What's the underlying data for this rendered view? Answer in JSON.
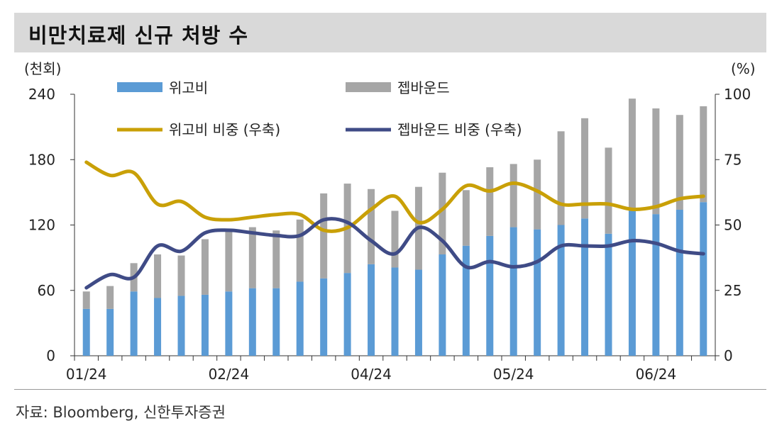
{
  "title": "비만치료제 신규 처방 수",
  "source": "자료: Bloomberg, 신한투자증권",
  "chart_data": {
    "type": "bar+line",
    "left_axis_unit": "(천회)",
    "right_axis_unit": "(%)",
    "left_ticks": [
      "0",
      "60",
      "120",
      "180",
      "240"
    ],
    "right_ticks": [
      "0",
      "25",
      "50",
      "75",
      "100"
    ],
    "ylim_left": [
      0,
      240
    ],
    "ylim_right": [
      0,
      100
    ],
    "x_tick_labels": [
      {
        "index": 0,
        "label": "01/24"
      },
      {
        "index": 6,
        "label": "02/24"
      },
      {
        "index": 12,
        "label": "04/24"
      },
      {
        "index": 18,
        "label": "05/24"
      },
      {
        "index": 24,
        "label": "06/24"
      }
    ],
    "legend": {
      "bar1": "위고비",
      "bar2": "젭바운드",
      "line1": "위고비 비중 (우축)",
      "line2": "젭바운드 비중 (우축)"
    },
    "colors": {
      "wegovy_bar": "#5b9bd5",
      "zepbound_bar": "#a6a6a6",
      "wegovy_line": "#c9a007",
      "zepbound_line": "#3f4b86"
    },
    "series_stacked_bars": [
      {
        "name": "위고비",
        "values": [
          43,
          43,
          59,
          53,
          55,
          56,
          59,
          62,
          62,
          68,
          71,
          76,
          84,
          81,
          79,
          93,
          101,
          110,
          118,
          116,
          120,
          126,
          112,
          133,
          130,
          134,
          141
        ]
      },
      {
        "name": "젭바운드",
        "values": [
          16,
          21,
          26,
          40,
          37,
          51,
          56,
          56,
          53,
          57,
          78,
          82,
          69,
          52,
          76,
          75,
          51,
          63,
          58,
          64,
          86,
          92,
          79,
          103,
          97,
          87,
          88
        ]
      }
    ],
    "series_lines": [
      {
        "name": "위고비 비중 (우축)",
        "values": [
          74,
          69,
          70,
          58,
          59,
          53,
          52,
          53,
          54,
          54,
          48,
          49,
          56,
          61,
          51,
          56,
          65,
          63,
          66,
          63,
          58,
          58,
          58,
          56,
          57,
          60,
          61
        ]
      },
      {
        "name": "젭바운드 비중 (우축)",
        "values": [
          26,
          31,
          30,
          42,
          40,
          47,
          48,
          47,
          46,
          46,
          52,
          51,
          44,
          39,
          49,
          44,
          34,
          36,
          34,
          36,
          42,
          42,
          42,
          44,
          43,
          40,
          39
        ]
      }
    ]
  }
}
